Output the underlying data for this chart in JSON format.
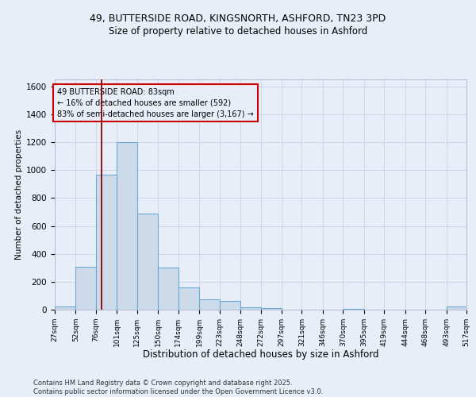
{
  "title_line1": "49, BUTTERSIDE ROAD, KINGSNORTH, ASHFORD, TN23 3PD",
  "title_line2": "Size of property relative to detached houses in Ashford",
  "xlabel": "Distribution of detached houses by size in Ashford",
  "ylabel": "Number of detached properties",
  "bin_labels": [
    "27sqm",
    "52sqm",
    "76sqm",
    "101sqm",
    "125sqm",
    "150sqm",
    "174sqm",
    "199sqm",
    "223sqm",
    "248sqm",
    "272sqm",
    "297sqm",
    "321sqm",
    "346sqm",
    "370sqm",
    "395sqm",
    "419sqm",
    "444sqm",
    "468sqm",
    "493sqm",
    "517sqm"
  ],
  "bin_edges": [
    27,
    52,
    76,
    101,
    125,
    150,
    174,
    199,
    223,
    248,
    272,
    297,
    321,
    346,
    370,
    395,
    419,
    444,
    468,
    493,
    517
  ],
  "bar_heights": [
    25,
    310,
    970,
    1200,
    690,
    300,
    160,
    75,
    65,
    15,
    10,
    0,
    0,
    0,
    5,
    0,
    0,
    0,
    0,
    20
  ],
  "bar_color": "#ccdaea",
  "bar_edge_color": "#6aaad4",
  "grid_color": "#ccd6e8",
  "background_color": "#e8eef8",
  "vline_x": 83,
  "vline_color": "#8b0000",
  "annotation_text": "49 BUTTERSIDE ROAD: 83sqm\n← 16% of detached houses are smaller (592)\n83% of semi-detached houses are larger (3,167) →",
  "annotation_box_color": "#cc0000",
  "ylim": [
    0,
    1650
  ],
  "yticks": [
    0,
    200,
    400,
    600,
    800,
    1000,
    1200,
    1400,
    1600
  ],
  "footnote": "Contains HM Land Registry data © Crown copyright and database right 2025.\nContains public sector information licensed under the Open Government Licence v3.0."
}
